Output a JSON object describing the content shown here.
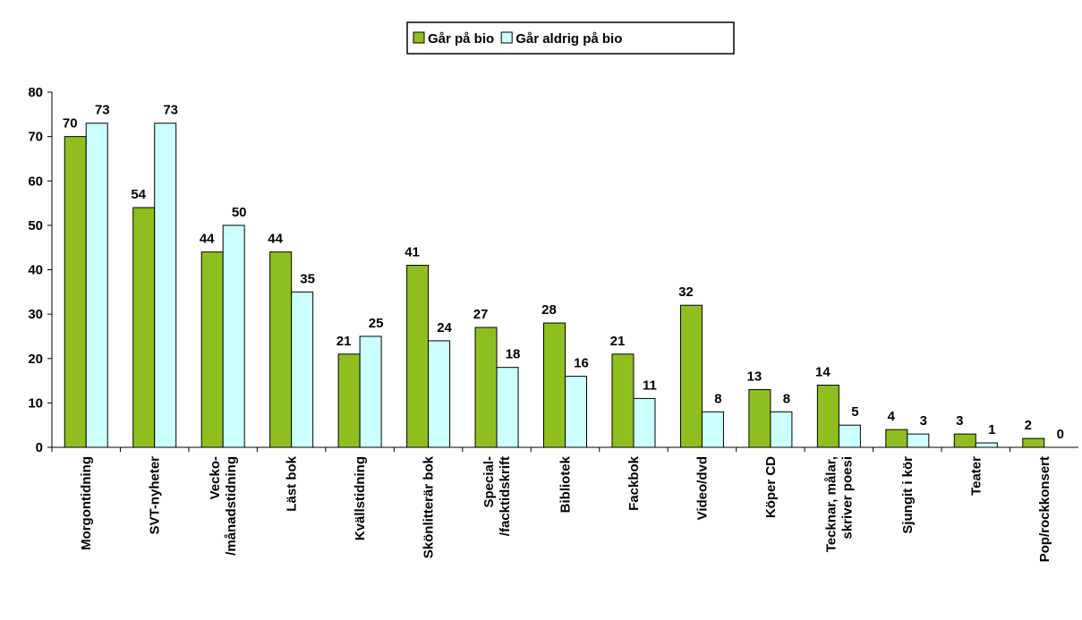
{
  "chart_data": {
    "type": "bar",
    "categories": [
      "Morgontidning",
      "SVT-nyheter",
      "Vecko-\n/månadstidning",
      "Läst bok",
      "Kvällstidning",
      "Skönlitterär bok",
      "Special-\n/facktidskrift",
      "Bibliotek",
      "Fackbok",
      "Video/dvd",
      "Köper CD",
      "Tecknar, målar,\nskriver poesi",
      "Sjungit i kör",
      "Teater",
      "Pop/rockkonsert"
    ],
    "series": [
      {
        "name": "Går på bio",
        "color": "#8fbf1f",
        "values": [
          70,
          54,
          44,
          44,
          21,
          41,
          27,
          28,
          21,
          32,
          13,
          14,
          4,
          3,
          2
        ]
      },
      {
        "name": "Går aldrig på bio",
        "color": "#ccffff",
        "values": [
          73,
          73,
          50,
          35,
          25,
          24,
          18,
          16,
          11,
          8,
          8,
          5,
          3,
          1,
          0
        ]
      }
    ],
    "ylim": [
      0,
      80
    ],
    "yticks": [
      0,
      10,
      20,
      30,
      40,
      50,
      60,
      70,
      80
    ],
    "legend": "top"
  }
}
